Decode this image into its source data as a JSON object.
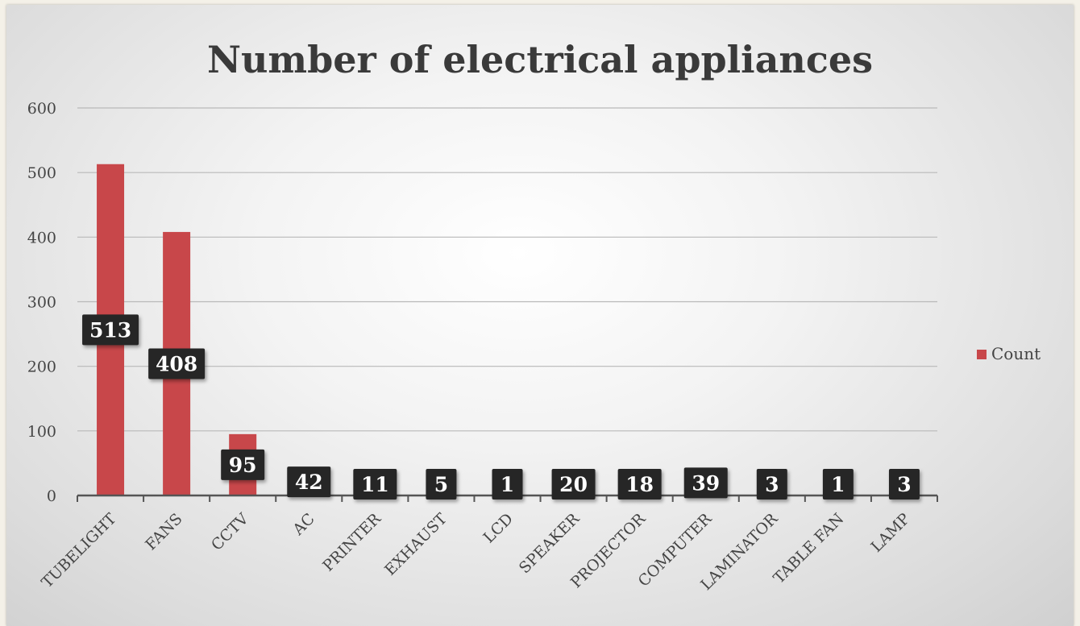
{
  "chart_data": {
    "type": "bar",
    "title": "Number of electrical appliances",
    "categories": [
      "TUBELIGHT",
      "FANS",
      "CCTV",
      "AC",
      "PRINTER",
      "EXHAUST",
      "LCD",
      "SPEAKER",
      "PROJECTOR",
      "COMPUTER",
      "LAMINATOR",
      "TABLE FAN",
      "LAMP"
    ],
    "series": [
      {
        "name": "Count",
        "values": [
          513,
          408,
          95,
          42,
          11,
          5,
          1,
          20,
          18,
          39,
          3,
          1,
          3
        ]
      }
    ],
    "yticks": [
      "0",
      "100",
      "200",
      "300",
      "400",
      "500",
      "600"
    ],
    "ylim": [
      0,
      600
    ],
    "grid": true,
    "legend_position": "right",
    "colors": {
      "bar": "#c8474a",
      "label_bg": "#262626",
      "label_text": "#ffffff",
      "grid": "#b9b9b9",
      "axis": "#555555"
    }
  }
}
